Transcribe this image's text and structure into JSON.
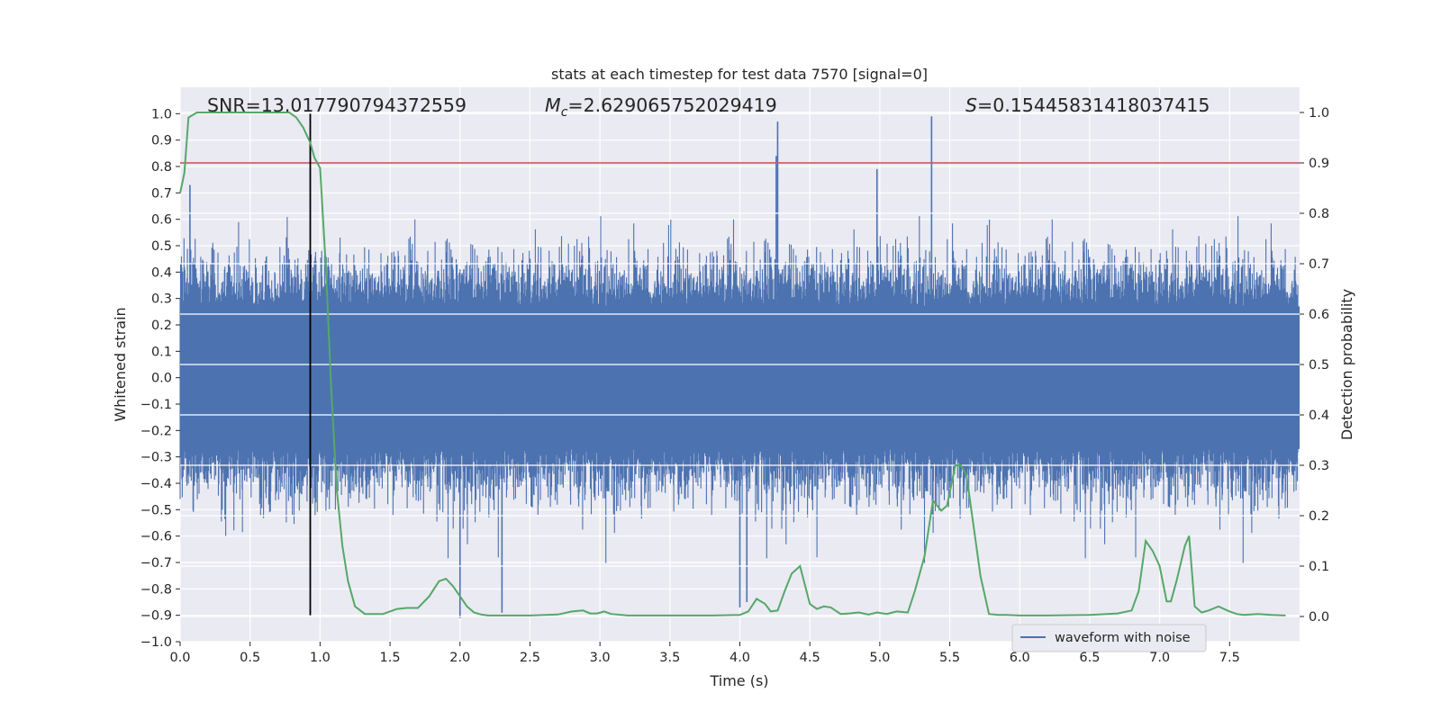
{
  "chart_data": {
    "type": "line",
    "title": "stats at each timestep for test data 7570 [signal=0]",
    "xlabel": "Time (s)",
    "ylabel_left": "Whitened strain",
    "ylabel_right": "Detection probability",
    "xlim": [
      0,
      8
    ],
    "ylim_left": [
      -1.0,
      1.1
    ],
    "ylim_right": [
      -0.05,
      1.05
    ],
    "x_ticks": [
      "0.0",
      "0.5",
      "1.0",
      "1.5",
      "2.0",
      "2.5",
      "3.0",
      "3.5",
      "4.0",
      "4.5",
      "5.0",
      "5.5",
      "6.0",
      "6.5",
      "7.0",
      "7.5"
    ],
    "y_left_ticks": [
      "-1.0",
      "-0.9",
      "-0.8",
      "-0.7",
      "-0.6",
      "-0.5",
      "-0.4",
      "-0.3",
      "-0.2",
      "-0.1",
      "0.0",
      "0.1",
      "0.2",
      "0.3",
      "0.4",
      "0.5",
      "0.6",
      "0.7",
      "0.8",
      "0.9",
      "1.0"
    ],
    "y_right_ticks": [
      "0.0",
      "0.1",
      "0.2",
      "0.3",
      "0.4",
      "0.5",
      "0.6",
      "0.7",
      "0.8",
      "0.9",
      "1.0"
    ],
    "grid": true,
    "annotations": {
      "snr": "SNR=13.017790794372559",
      "mc_symbol": "M",
      "mc_subscript": "c",
      "mc_value": "=2.629065752029419",
      "s_symbol": "S",
      "s_value": "=0.15445831418037415"
    },
    "series": [
      {
        "name": "waveform with noise",
        "axis": "left",
        "color": "#4c72b0",
        "style": "dense noise, amplitude approx. +/-0.6 with spikes to 0.97",
        "spikes": [
          {
            "x": 4.27,
            "y": 0.97
          },
          {
            "x": 5.37,
            "y": 0.99
          },
          {
            "x": 4.98,
            "y": 0.79
          },
          {
            "x": 4.26,
            "y": 0.84
          },
          {
            "x": 0.07,
            "y": 0.73
          },
          {
            "x": 2.3,
            "y": -0.89
          },
          {
            "x": 2.0,
            "y": -0.91
          },
          {
            "x": 4.0,
            "y": -0.87
          },
          {
            "x": 4.05,
            "y": -0.85
          }
        ]
      },
      {
        "name": "detection probability",
        "axis": "right",
        "color": "#55a868",
        "x": [
          0.0,
          0.03,
          0.06,
          0.12,
          0.2,
          0.3,
          0.5,
          0.7,
          0.78,
          0.83,
          0.88,
          0.93,
          0.96,
          1.0,
          1.04,
          1.08,
          1.12,
          1.16,
          1.2,
          1.25,
          1.32,
          1.45,
          1.55,
          1.62,
          1.7,
          1.78,
          1.85,
          1.9,
          1.95,
          2.0,
          2.05,
          2.1,
          2.15,
          2.2,
          2.3,
          2.5,
          2.7,
          2.8,
          2.88,
          2.93,
          2.98,
          3.03,
          3.08,
          3.2,
          3.5,
          3.8,
          4.0,
          4.06,
          4.12,
          4.18,
          4.22,
          4.27,
          4.32,
          4.37,
          4.43,
          4.5,
          4.55,
          4.6,
          4.65,
          4.72,
          4.78,
          4.85,
          4.92,
          4.98,
          5.05,
          5.12,
          5.2,
          5.25,
          5.32,
          5.38,
          5.44,
          5.48,
          5.54,
          5.58,
          5.62,
          5.68,
          5.72,
          5.78,
          5.85,
          5.9,
          6.0,
          6.2,
          6.5,
          6.7,
          6.8,
          6.85,
          6.9,
          6.95,
          7.0,
          7.05,
          7.08,
          7.12,
          7.18,
          7.21,
          7.25,
          7.3,
          7.35,
          7.42,
          7.5,
          7.55,
          7.6,
          7.7,
          7.8,
          7.9
        ],
        "values": [
          0.84,
          0.88,
          0.99,
          1.0,
          1.0,
          1.0,
          1.0,
          1.0,
          1.0,
          0.99,
          0.97,
          0.94,
          0.91,
          0.89,
          0.7,
          0.45,
          0.25,
          0.14,
          0.07,
          0.02,
          0.005,
          0.005,
          0.015,
          0.017,
          0.017,
          0.04,
          0.07,
          0.075,
          0.06,
          0.04,
          0.02,
          0.008,
          0.004,
          0.002,
          0.002,
          0.002,
          0.004,
          0.01,
          0.012,
          0.006,
          0.006,
          0.01,
          0.005,
          0.002,
          0.002,
          0.002,
          0.003,
          0.01,
          0.035,
          0.025,
          0.01,
          0.012,
          0.05,
          0.085,
          0.1,
          0.025,
          0.015,
          0.02,
          0.018,
          0.005,
          0.006,
          0.008,
          0.004,
          0.008,
          0.005,
          0.01,
          0.008,
          0.05,
          0.12,
          0.23,
          0.21,
          0.22,
          0.3,
          0.3,
          0.28,
          0.16,
          0.08,
          0.005,
          0.003,
          0.003,
          0.002,
          0.002,
          0.003,
          0.006,
          0.012,
          0.05,
          0.15,
          0.13,
          0.1,
          0.03,
          0.03,
          0.07,
          0.14,
          0.16,
          0.02,
          0.008,
          0.012,
          0.02,
          0.01,
          0.005,
          0.003,
          0.005,
          0.003,
          0.002
        ]
      }
    ],
    "vertical_line": {
      "x": 0.93,
      "color": "#000000"
    },
    "threshold_line": {
      "axis": "right",
      "y": 0.9,
      "color": "#c44e52"
    },
    "legend": {
      "entries": [
        "waveform with noise"
      ],
      "placement": "bottom-right"
    }
  }
}
